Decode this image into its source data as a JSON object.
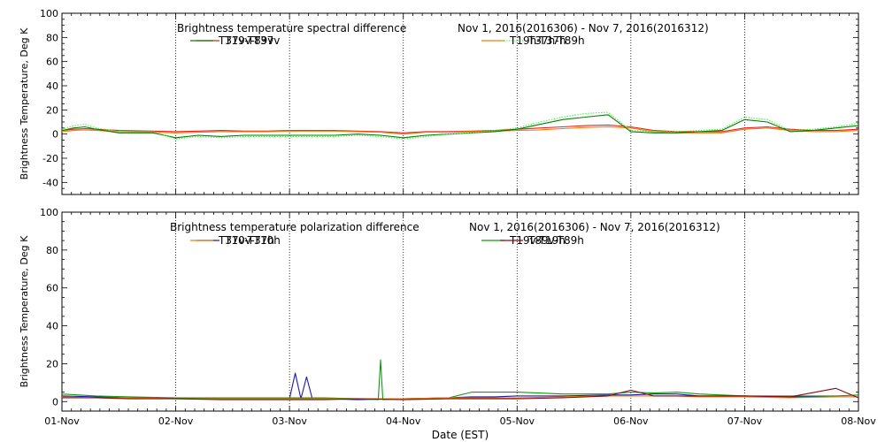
{
  "chart_data": [
    {
      "type": "line",
      "title": "Brightness temperature spectral difference",
      "date_range": "Nov  1, 2016(2016306) - Nov  7, 2016(2016312)",
      "ylabel": "Brightness Temperature, Deg K",
      "xlabel": "",
      "xlim": [
        0,
        7
      ],
      "ylim": [
        -50,
        100
      ],
      "yticks": [
        -40,
        -20,
        0,
        20,
        40,
        60,
        80,
        100
      ],
      "grid": true,
      "legend_position": "top",
      "series": [
        {
          "name": "T19v-T37v",
          "color": "#e8231c",
          "style": "solid",
          "x": [
            0,
            0.1,
            0.2,
            0.3,
            0.5,
            0.8,
            1.0,
            1.2,
            1.4,
            1.6,
            1.8,
            2.0,
            2.2,
            2.4,
            2.6,
            2.8,
            3.0,
            3.2,
            3.4,
            3.6,
            3.8,
            4.0,
            4.2,
            4.4,
            4.6,
            4.8,
            5.0,
            5.2,
            5.4,
            5.6,
            5.8,
            6.0,
            6.2,
            6.4,
            6.6,
            6.8,
            7.0
          ],
          "y": [
            3,
            4,
            4.5,
            4,
            3,
            2.5,
            2,
            2.5,
            3,
            2.5,
            2.5,
            3,
            3,
            3,
            2.5,
            2,
            1,
            2,
            2,
            2.5,
            3,
            4,
            5,
            6,
            7,
            7.5,
            6,
            3,
            2,
            2,
            2,
            5,
            6,
            4,
            3,
            3,
            4
          ]
        },
        {
          "name": "T19h-T37h",
          "color": "#f07a10",
          "style": "solid",
          "x": [
            0,
            0.1,
            0.2,
            0.3,
            0.5,
            0.8,
            1.0,
            1.2,
            1.4,
            1.6,
            1.8,
            2.0,
            2.2,
            2.4,
            2.6,
            2.8,
            3.0,
            3.2,
            3.4,
            3.6,
            3.8,
            4.0,
            4.2,
            4.4,
            4.6,
            4.8,
            5.0,
            5.2,
            5.4,
            5.6,
            5.8,
            6.0,
            6.2,
            6.4,
            6.6,
            6.8,
            7.0
          ],
          "y": [
            2,
            3,
            3.5,
            3,
            2,
            1.5,
            1,
            1.5,
            2,
            2,
            2,
            2.5,
            2.5,
            2.5,
            2,
            1.5,
            0,
            1.5,
            1.5,
            2,
            2.5,
            3,
            3.5,
            4.5,
            5.5,
            6,
            5,
            2,
            1,
            1,
            1,
            4,
            5,
            3,
            2,
            2,
            3
          ]
        },
        {
          "name": "T37v-T89v",
          "color": "#0a7a0a",
          "style": "solid",
          "x": [
            0,
            0.1,
            0.2,
            0.3,
            0.5,
            0.8,
            1.0,
            1.2,
            1.4,
            1.6,
            1.8,
            2.0,
            2.2,
            2.4,
            2.6,
            2.8,
            3.0,
            3.2,
            3.4,
            3.6,
            3.8,
            4.0,
            4.2,
            4.4,
            4.6,
            4.8,
            5.0,
            5.2,
            5.4,
            5.6,
            5.8,
            6.0,
            6.2,
            6.4,
            6.6,
            6.8,
            7.0
          ],
          "y": [
            3,
            5,
            6,
            4,
            1,
            1,
            -3,
            -1,
            -2,
            -1,
            -1,
            -1,
            -1,
            -1,
            0,
            -1,
            -3,
            -1,
            0,
            1,
            2,
            4,
            8,
            12,
            14,
            16,
            2,
            1,
            1,
            2,
            3,
            12,
            10,
            2,
            3,
            5,
            7
          ]
        },
        {
          "name": "T37h-T89h",
          "color": "#33ff33",
          "style": "dotted",
          "x": [
            0,
            0.1,
            0.2,
            0.3,
            0.5,
            0.8,
            1.0,
            1.2,
            1.4,
            1.6,
            1.8,
            2.0,
            2.2,
            2.4,
            2.6,
            2.8,
            3.0,
            3.2,
            3.4,
            3.6,
            3.8,
            4.0,
            4.2,
            4.4,
            4.6,
            4.8,
            5.0,
            5.2,
            5.4,
            5.6,
            5.8,
            6.0,
            6.2,
            6.4,
            6.6,
            6.8,
            7.0
          ],
          "y": [
            4,
            7,
            8,
            5,
            2,
            2,
            -4,
            -2,
            -3,
            -2,
            -2,
            -2,
            -2,
            -2,
            -1,
            -2,
            -4,
            -2,
            0,
            1,
            3,
            5,
            10,
            14,
            17,
            18,
            3,
            2,
            2,
            3,
            4,
            14,
            12,
            3,
            4,
            6,
            9
          ]
        }
      ]
    },
    {
      "type": "line",
      "title": "Brightness temperature polarization difference",
      "date_range": "Nov  1, 2016(2016306) - Nov  7, 2016(2016312)",
      "ylabel": "Brightness Temperature, Deg K",
      "xlabel": "Date (EST)",
      "xlim": [
        0,
        7
      ],
      "ylim": [
        -5,
        100
      ],
      "yticks": [
        0,
        20,
        40,
        60,
        80,
        100
      ],
      "xticks": [
        "01-Nov",
        "02-Nov",
        "03-Nov",
        "04-Nov",
        "05-Nov",
        "06-Nov",
        "07-Nov",
        "08-Nov"
      ],
      "grid": true,
      "legend_position": "top",
      "series": [
        {
          "name": "T10v-T10h",
          "color": "#1a1aa8",
          "style": "solid",
          "x": [
            0,
            0.3,
            0.6,
            1.0,
            1.4,
            1.8,
            2.0,
            2.05,
            2.1,
            2.15,
            2.2,
            2.3,
            2.6,
            3.0,
            3.4,
            3.6,
            3.8,
            4.0,
            4.4,
            4.8,
            5.0,
            5.2,
            5.4,
            5.6,
            6.0,
            6.4,
            6.8,
            7.0
          ],
          "y": [
            3,
            2.5,
            2,
            2,
            1.5,
            1.5,
            1.5,
            15,
            1.5,
            13,
            1.5,
            1.5,
            1,
            1.5,
            2,
            2.5,
            2.5,
            3,
            3,
            3.5,
            3.5,
            4,
            4,
            3,
            3,
            2.5,
            2.5,
            2.5
          ]
        },
        {
          "name": "T19v-T19h",
          "color": "#119911",
          "style": "solid",
          "x": [
            0,
            0.3,
            0.6,
            1.0,
            1.4,
            1.8,
            2.0,
            2.3,
            2.6,
            2.78,
            2.8,
            2.82,
            3.0,
            3.4,
            3.6,
            3.8,
            4.0,
            4.4,
            4.8,
            5.0,
            5.2,
            5.4,
            5.6,
            6.0,
            6.4,
            6.8,
            7.0
          ],
          "y": [
            4,
            3,
            2.5,
            2,
            2,
            2,
            2,
            2,
            1.5,
            1,
            22,
            1,
            1.5,
            2,
            5,
            5,
            5,
            4,
            4,
            5,
            4.5,
            5,
            4,
            3,
            3,
            3,
            3.5
          ]
        },
        {
          "name": "T37v-T37h",
          "color": "#f07a10",
          "style": "solid",
          "x": [
            0,
            0.3,
            0.6,
            1.0,
            1.4,
            1.8,
            2.0,
            2.3,
            2.6,
            3.0,
            3.4,
            3.6,
            3.8,
            4.0,
            4.4,
            4.8,
            5.0,
            5.2,
            5.4,
            5.6,
            6.0,
            6.4,
            6.8,
            7.0
          ],
          "y": [
            2.5,
            2,
            2,
            1.5,
            1.5,
            1.5,
            1.5,
            1.5,
            1.5,
            1.5,
            2,
            2,
            2,
            2,
            2.5,
            3,
            3,
            3,
            3,
            2.5,
            2.5,
            2,
            2.5,
            2.5
          ]
        },
        {
          "name": "T89v-T89h",
          "color": "#8b0a0a",
          "style": "solid",
          "x": [
            0,
            0.3,
            0.6,
            1.0,
            1.4,
            1.8,
            2.0,
            2.3,
            2.6,
            3.0,
            3.4,
            3.6,
            3.8,
            4.0,
            4.4,
            4.8,
            5.0,
            5.2,
            5.4,
            5.6,
            6.0,
            6.4,
            6.8,
            7.0
          ],
          "y": [
            2,
            2,
            1.5,
            1.5,
            1,
            1,
            1,
            1,
            1.5,
            1,
            1.5,
            1.5,
            1.5,
            1.5,
            2,
            3,
            6,
            3,
            3,
            3,
            3,
            2.5,
            7,
            2
          ]
        }
      ]
    }
  ]
}
